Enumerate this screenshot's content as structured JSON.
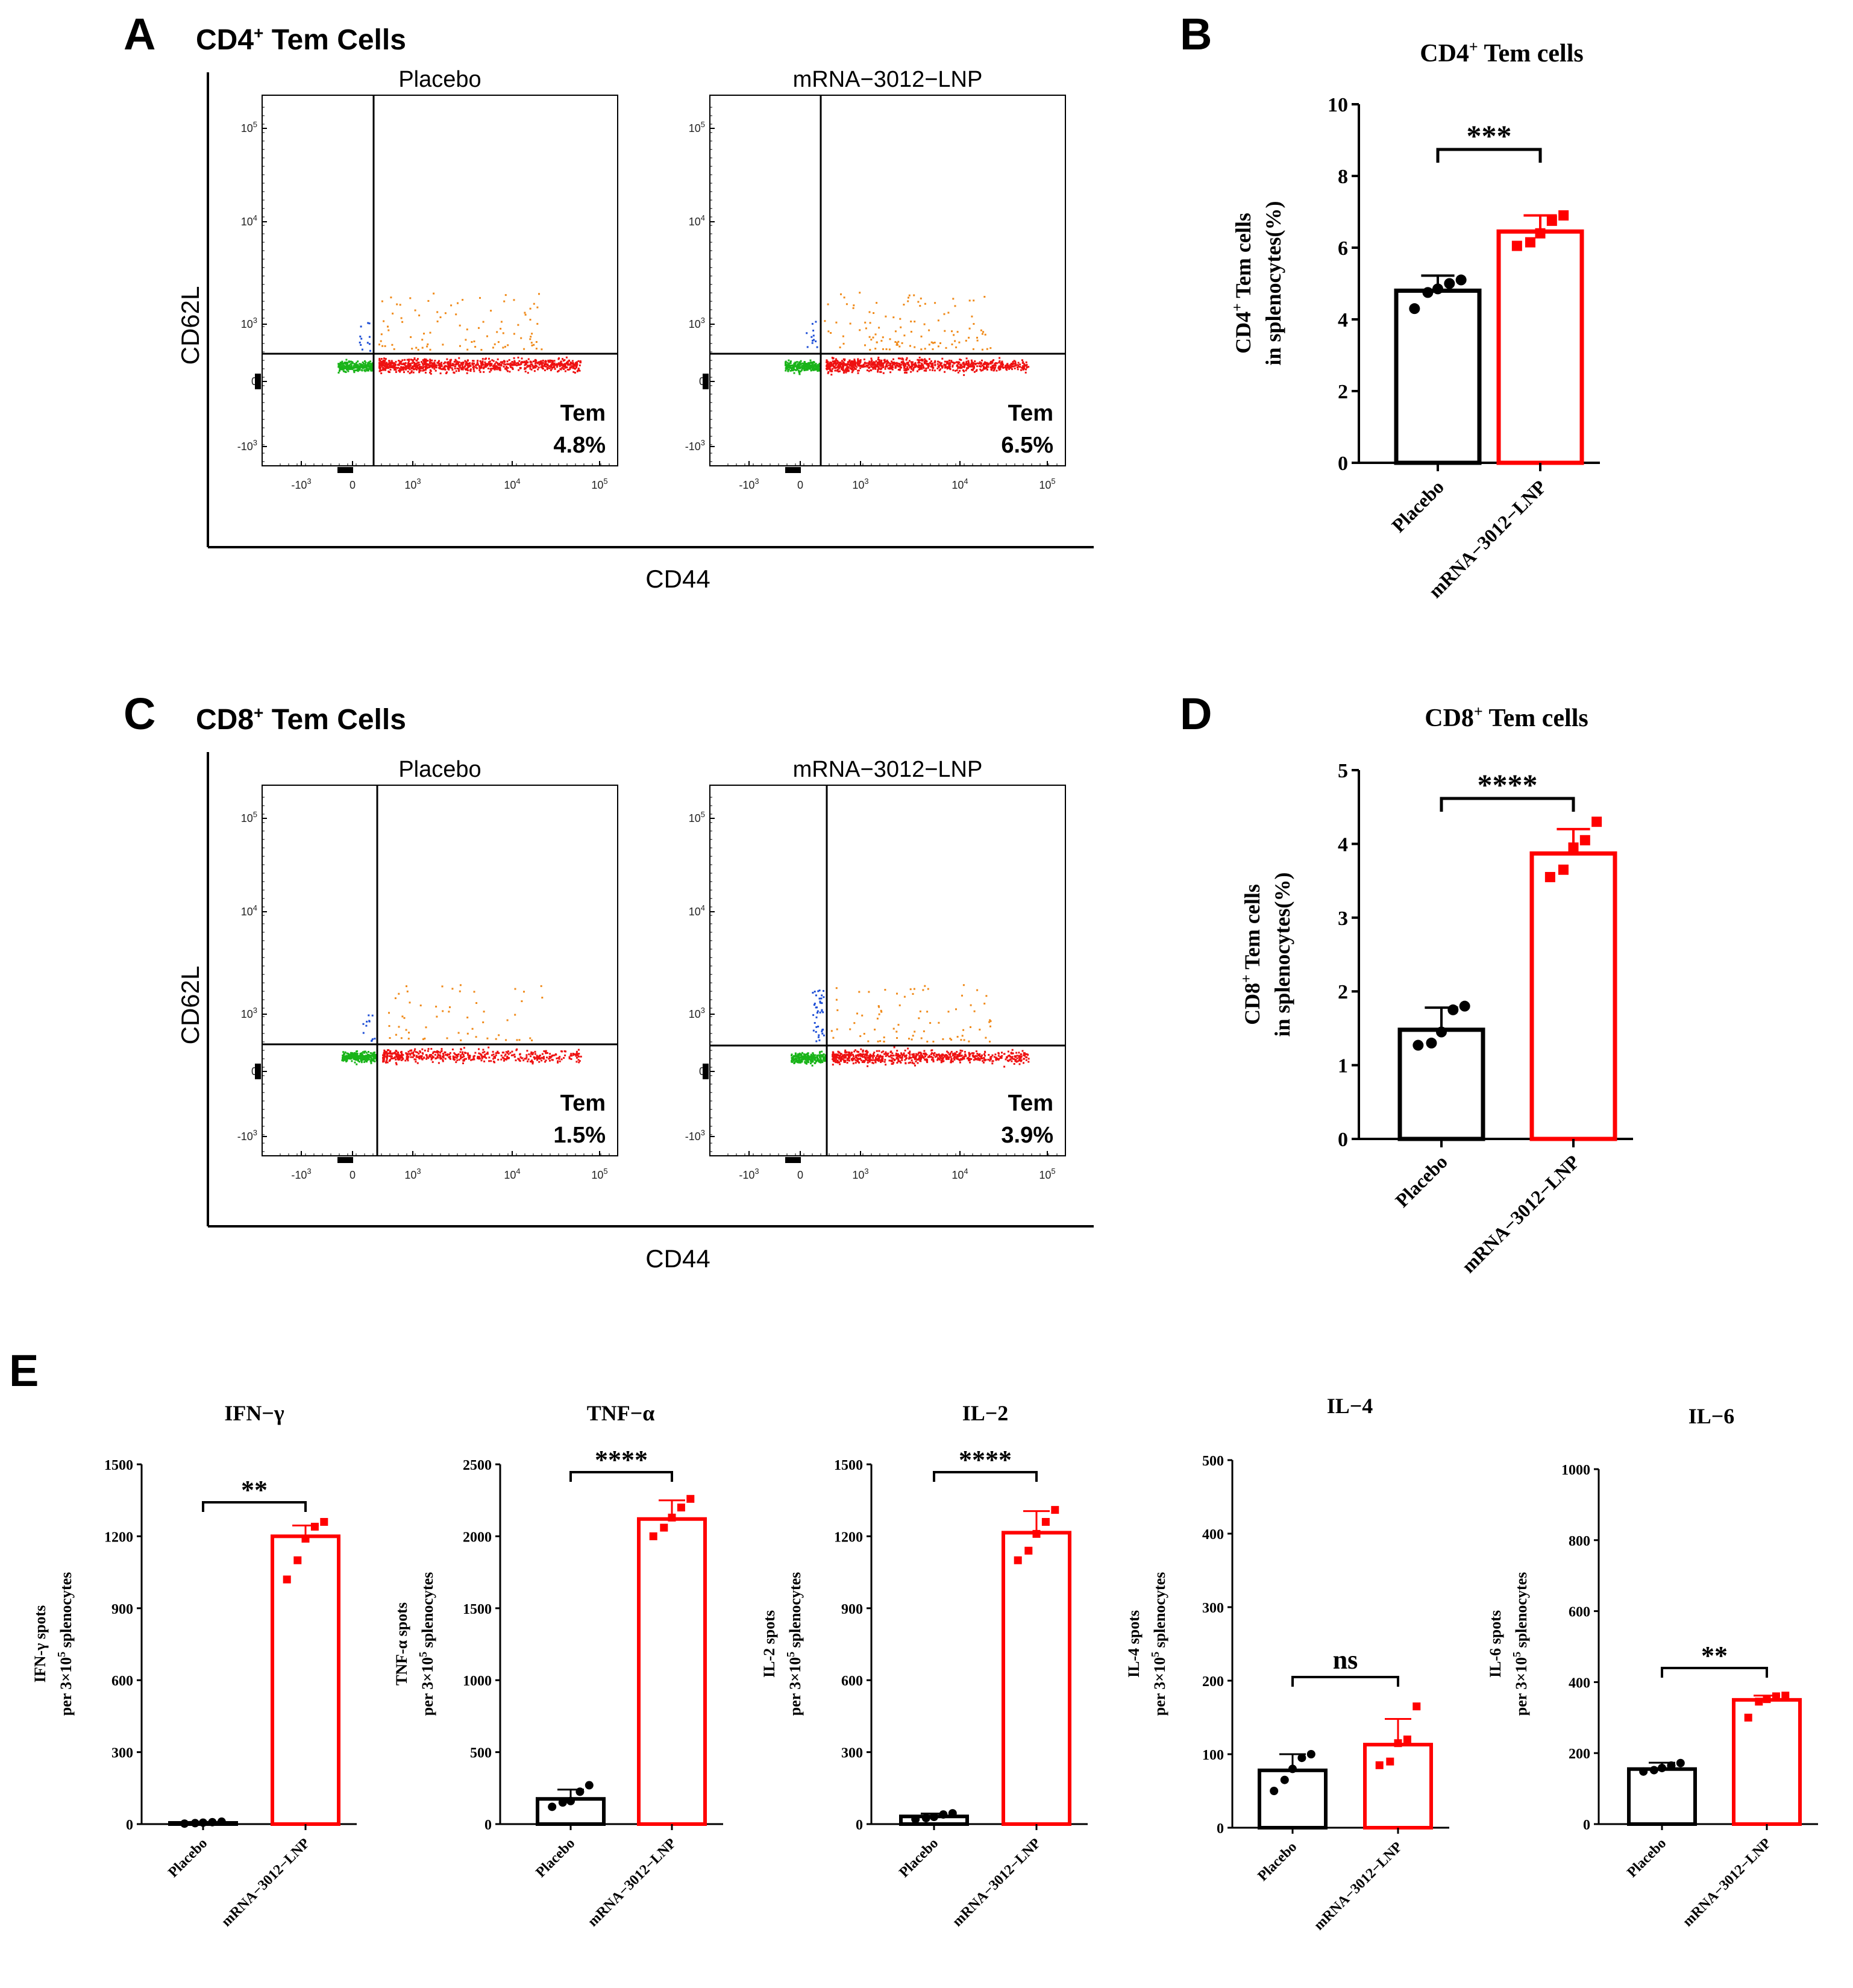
{
  "colors": {
    "placebo": "#000000",
    "vaccine": "#ff0000",
    "q_ul": "#1f4fd6",
    "q_ur": "#f08a1a",
    "q_ll": "#19b419",
    "q_lr": "#ee1111"
  },
  "panelA": {
    "letter": "A",
    "title_main": "CD4",
    "title_sup": "+",
    "title_rest": " Tem Cells",
    "ylabel": "CD62L",
    "xlabel": "CD44",
    "plots": [
      {
        "name": "Placebo",
        "tem_label": "Tem",
        "tem_value": "4.8%"
      },
      {
        "name": "mRNA−3012−LNP",
        "tem_label": "Tem",
        "tem_value": "6.5%"
      }
    ]
  },
  "panelC": {
    "letter": "C",
    "title_main": "CD8",
    "title_sup": "+",
    "title_rest": " Tem Cells",
    "ylabel": "CD62L",
    "xlabel": "CD44",
    "plots": [
      {
        "name": "Placebo",
        "tem_label": "Tem",
        "tem_value": "1.5%"
      },
      {
        "name": "mRNA−3012−LNP",
        "tem_label": "Tem",
        "tem_value": "3.9%"
      }
    ]
  },
  "flow_ticks": {
    "y": [
      [
        "10",
        "5"
      ],
      [
        "10",
        "4"
      ],
      [
        "10",
        "3"
      ],
      [
        "0",
        ""
      ],
      [
        "-10",
        "3"
      ]
    ],
    "x": [
      [
        "-10",
        "3"
      ],
      [
        "0",
        ""
      ],
      [
        "10",
        "3"
      ],
      [
        "10",
        "4"
      ],
      [
        "10",
        "5"
      ]
    ]
  },
  "chart_data": [
    {
      "id": "B",
      "letter": "B",
      "type": "bar",
      "title": "CD4",
      "title_sup": "+",
      "title_rest": " Tem cells",
      "ylabel1_a": "CD4",
      "ylabel1_sup": "+",
      "ylabel1_b": " Tem cells",
      "ylabel2": "in splenocytes(%)",
      "categories": [
        "Placebo",
        "mRNA−3012−LNP"
      ],
      "values": [
        4.8,
        6.45
      ],
      "errors": [
        0.42,
        0.45
      ],
      "points": [
        [
          4.3,
          4.75,
          4.85,
          5.0,
          5.1
        ],
        [
          6.05,
          6.15,
          6.4,
          6.75,
          6.9
        ]
      ],
      "ylim": [
        0,
        10
      ],
      "yticks": [
        0,
        2,
        4,
        6,
        8,
        10
      ],
      "significance": "***"
    },
    {
      "id": "D",
      "letter": "D",
      "type": "bar",
      "title": "CD8",
      "title_sup": "+",
      "title_rest": " Tem cells",
      "ylabel1_a": "CD8",
      "ylabel1_sup": "+",
      "ylabel1_b": " Tem cells",
      "ylabel2": "in splenocytes(%)",
      "categories": [
        "Placebo",
        "mRNA−3012−LNP"
      ],
      "values": [
        1.48,
        3.87
      ],
      "errors": [
        0.3,
        0.33
      ],
      "points": [
        [
          1.27,
          1.3,
          1.45,
          1.75,
          1.8
        ],
        [
          3.55,
          3.65,
          3.95,
          4.05,
          4.3
        ]
      ],
      "ylim": [
        0,
        5
      ],
      "yticks": [
        0,
        1,
        2,
        3,
        4,
        5
      ],
      "significance": "****"
    },
    {
      "id": "E1",
      "type": "bar",
      "title": "IFN−γ",
      "ylabel1": "IFN-γ spots",
      "ylabel2_a": "per 3×10",
      "ylabel2_sup": "5",
      "ylabel2_b": " splenocytes",
      "categories": [
        "Placebo",
        "mRNA−3012−LNP"
      ],
      "values": [
        5,
        1200
      ],
      "errors": [
        4,
        45
      ],
      "points": [
        [
          2,
          4,
          6,
          8,
          10
        ],
        [
          1020,
          1100,
          1190,
          1240,
          1260
        ]
      ],
      "ylim": [
        0,
        1500
      ],
      "yticks": [
        0,
        300,
        600,
        900,
        1200,
        1500
      ],
      "significance": "**"
    },
    {
      "id": "E2",
      "type": "bar",
      "title": "TNF−α",
      "ylabel1": "TNF-α spots",
      "ylabel2_a": "per 3×10",
      "ylabel2_sup": "5",
      "ylabel2_b": " splenocytes",
      "categories": [
        "Placebo",
        "mRNA−3012−LNP"
      ],
      "values": [
        175,
        2120
      ],
      "errors": [
        65,
        130
      ],
      "points": [
        [
          120,
          150,
          160,
          225,
          270
        ],
        [
          2000,
          2060,
          2130,
          2200,
          2260
        ]
      ],
      "ylim": [
        0,
        2500
      ],
      "yticks": [
        0,
        500,
        1000,
        1500,
        2000,
        2500
      ],
      "significance": "****"
    },
    {
      "id": "E3",
      "type": "bar",
      "title": "IL−2",
      "ylabel1": "IL-2 spots",
      "ylabel2_a": "per 3×10",
      "ylabel2_sup": "5",
      "ylabel2_b": " splenocytes",
      "categories": [
        "Placebo",
        "mRNA−3012−LNP"
      ],
      "values": [
        32,
        1215
      ],
      "errors": [
        12,
        90
      ],
      "points": [
        [
          20,
          25,
          30,
          40,
          45
        ],
        [
          1100,
          1140,
          1210,
          1260,
          1310
        ]
      ],
      "ylim": [
        0,
        1500
      ],
      "yticks": [
        0,
        300,
        600,
        900,
        1200,
        1500
      ],
      "significance": "****"
    },
    {
      "id": "E4",
      "type": "bar",
      "title": "IL−4",
      "ylabel1": "IL-4 spots",
      "ylabel2_a": "per 3×10",
      "ylabel2_sup": "5",
      "ylabel2_b": " splenocytes",
      "categories": [
        "Placebo",
        "mRNA−3012−LNP"
      ],
      "values": [
        78,
        113
      ],
      "errors": [
        22,
        35
      ],
      "points": [
        [
          50,
          65,
          80,
          95,
          100
        ],
        [
          85,
          90,
          115,
          120,
          165
        ]
      ],
      "ylim": [
        0,
        500
      ],
      "yticks": [
        0,
        100,
        200,
        300,
        400,
        500
      ],
      "significance": "ns"
    },
    {
      "id": "E5",
      "type": "bar",
      "title": "IL−6",
      "ylabel1": "IL-6 spots",
      "ylabel2_a": "per 3×10",
      "ylabel2_sup": "5",
      "ylabel2_b": " splenocytes",
      "categories": [
        "Placebo",
        "mRNA−3012−LNP"
      ],
      "values": [
        155,
        350
      ],
      "errors": [
        18,
        12
      ],
      "points": [
        [
          148,
          152,
          158,
          165,
          172
        ],
        [
          300,
          345,
          352,
          360,
          362
        ]
      ],
      "ylim": [
        0,
        1000
      ],
      "yticks": [
        0,
        200,
        400,
        600,
        800,
        1000
      ],
      "significance": "**"
    }
  ],
  "panelE_letter": "E"
}
